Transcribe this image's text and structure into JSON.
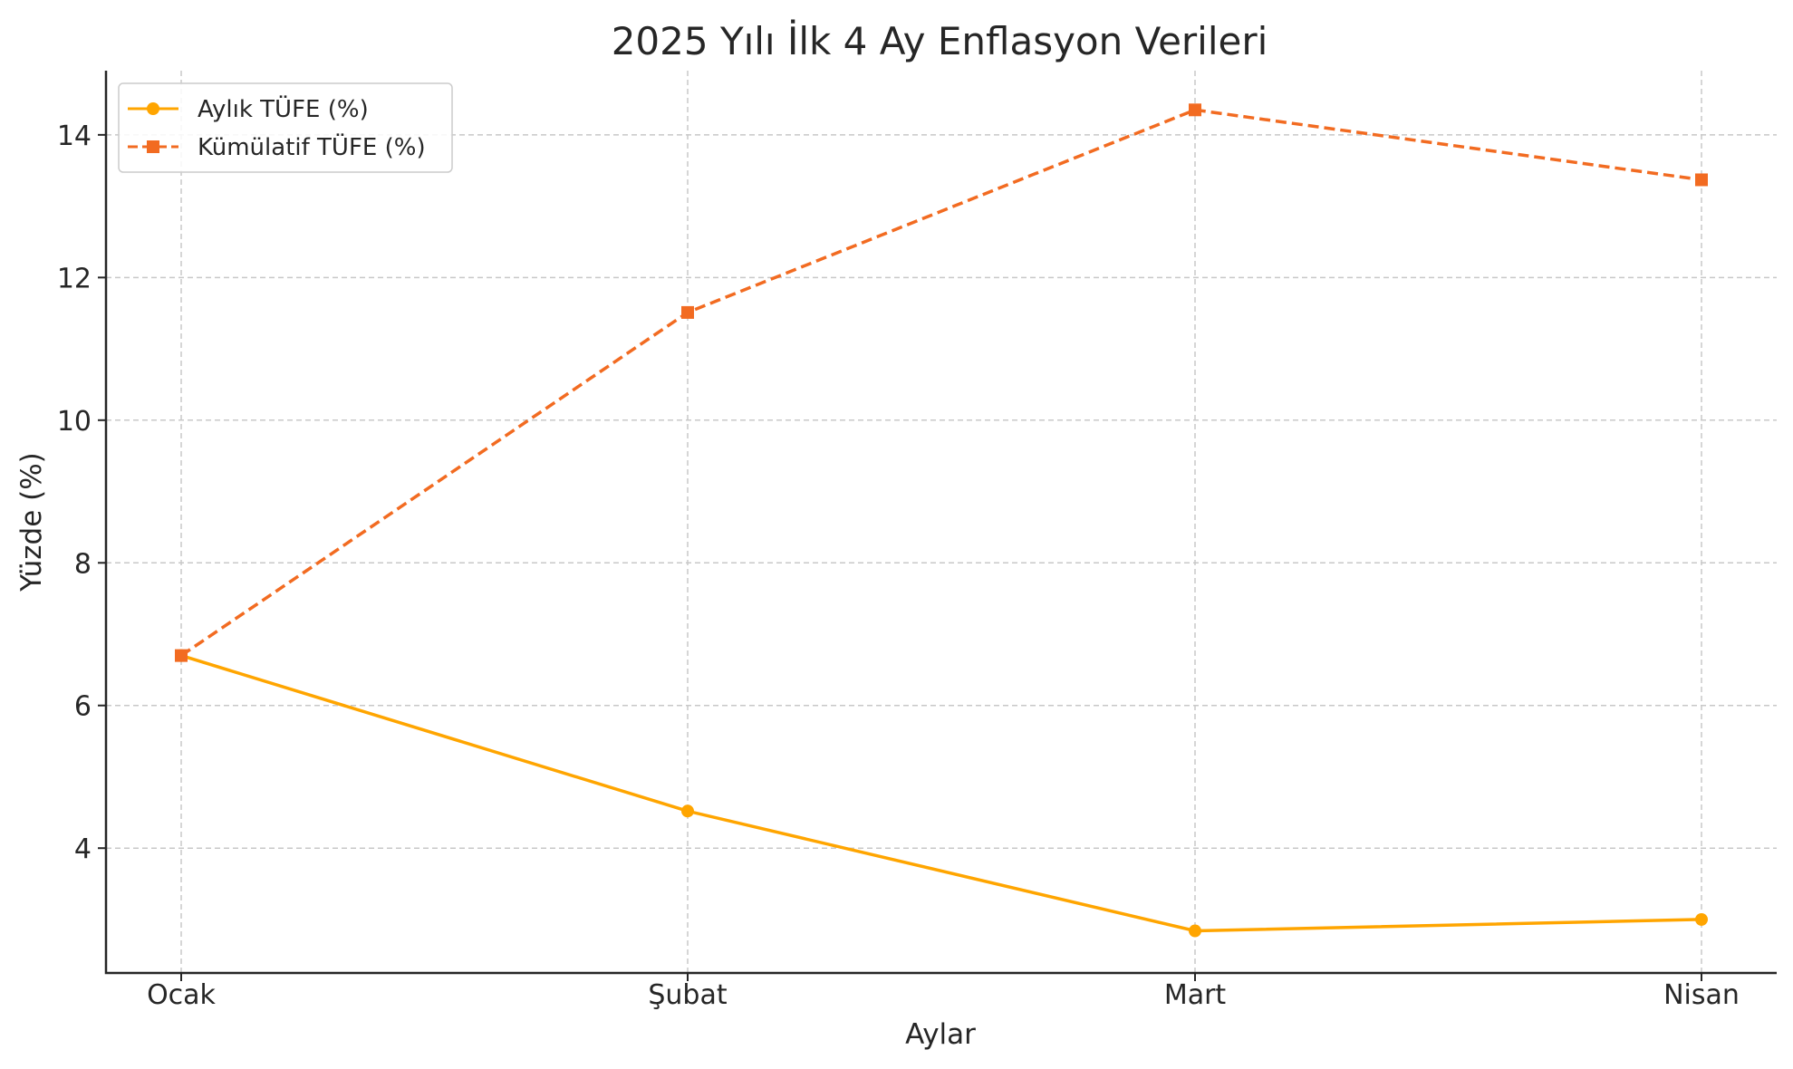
{
  "chart_data": {
    "type": "line",
    "title": "2025 Yılı İlk 4 Ay Enflasyon Verileri",
    "xlabel": "Aylar",
    "ylabel": "Yüzde (%)",
    "categories": [
      "Ocak",
      "Şubat",
      "Mart",
      "Nisan"
    ],
    "ylim": [
      2.25,
      14.9
    ],
    "yticks": [
      4,
      6,
      8,
      10,
      12,
      14
    ],
    "grid": true,
    "legend_position": "top-left",
    "series": [
      {
        "name": "Aylık TÜFE (%)",
        "values": [
          6.7,
          4.52,
          2.84,
          3.0
        ],
        "color": "#FFA500",
        "line_style": "solid",
        "marker": "circle"
      },
      {
        "name": "Kümülatif TÜFE (%)",
        "values": [
          6.7,
          11.51,
          14.35,
          13.37
        ],
        "color": "#F26B21",
        "line_style": "dashed",
        "marker": "square"
      }
    ]
  }
}
